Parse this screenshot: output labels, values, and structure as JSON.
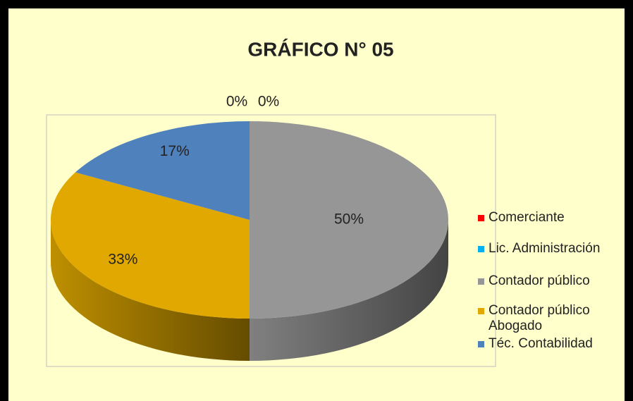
{
  "chart_data": {
    "type": "pie",
    "title": "GRÁFICO N° 05",
    "categories": [
      "Comerciante",
      "Lic. Administración",
      "Contador público",
      "Contador público Abogado",
      "Téc. Contabilidad"
    ],
    "values": [
      0,
      0,
      50,
      33,
      17
    ],
    "value_labels": [
      "0%",
      "0%",
      "50%",
      "33%",
      "17%"
    ],
    "colors": [
      "#ff0000",
      "#00b0f0",
      "#969696",
      "#e0a800",
      "#4f81bd"
    ],
    "legend": "right"
  }
}
